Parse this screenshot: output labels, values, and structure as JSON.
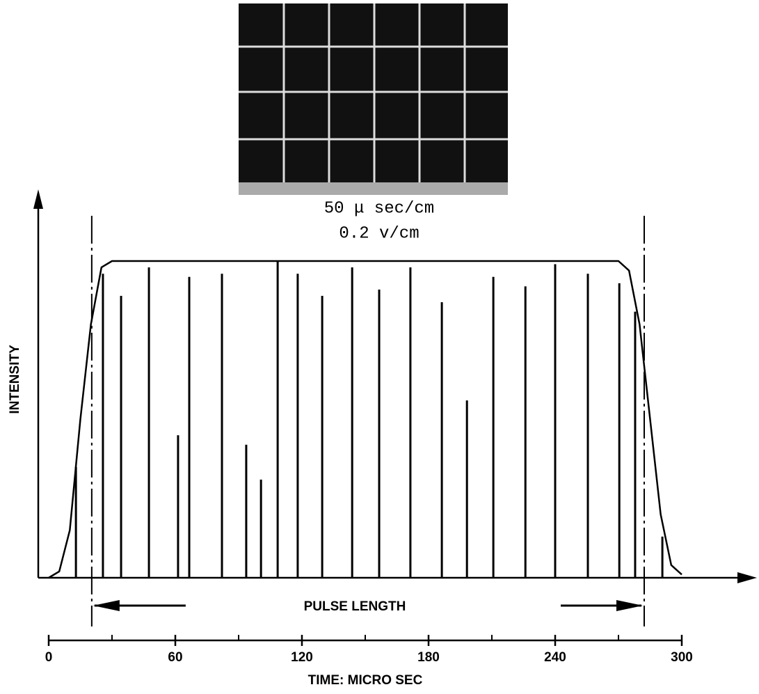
{
  "chart_data": {
    "type": "spike",
    "annotations": [
      "50 μ sec/cm",
      "0.2 v/cm"
    ],
    "ylabel": "INTENSITY",
    "xlabel": "TIME:  MICRO SEC",
    "pulse_label": "PULSE LENGTH",
    "pulse_bounds": [
      20.4,
      282.2
    ],
    "xlim": [
      0,
      300
    ],
    "ylim": [
      0,
      1.2
    ],
    "xticks": [
      0,
      60,
      120,
      180,
      240,
      300
    ],
    "xminor": [
      30,
      90,
      150,
      210,
      270
    ],
    "color": "#000000",
    "envelope": {
      "x": [
        0,
        5,
        10,
        15,
        20,
        25,
        30,
        270,
        275,
        280,
        285,
        290,
        295,
        300
      ],
      "values": [
        0,
        0.02,
        0.15,
        0.5,
        0.8,
        0.98,
        1,
        1,
        0.97,
        0.8,
        0.5,
        0.2,
        0.04,
        0.01
      ]
    },
    "spikes": {
      "x": [
        12.9,
        25.7,
        34.3,
        47.5,
        61.3,
        66.6,
        82.1,
        93.6,
        100.6,
        108.5,
        118.0,
        129.6,
        143.8,
        156.6,
        171.4,
        186.3,
        198.2,
        210.7,
        225.9,
        240.0,
        255.5,
        270.4,
        277.9,
        290.8
      ],
      "values": [
        0.35,
        0.96,
        0.89,
        0.98,
        0.45,
        0.95,
        0.96,
        0.42,
        0.31,
        1.0,
        0.96,
        0.89,
        0.98,
        0.91,
        0.98,
        0.87,
        0.56,
        0.95,
        0.92,
        0.99,
        0.96,
        0.93,
        0.84,
        0.13
      ]
    }
  }
}
